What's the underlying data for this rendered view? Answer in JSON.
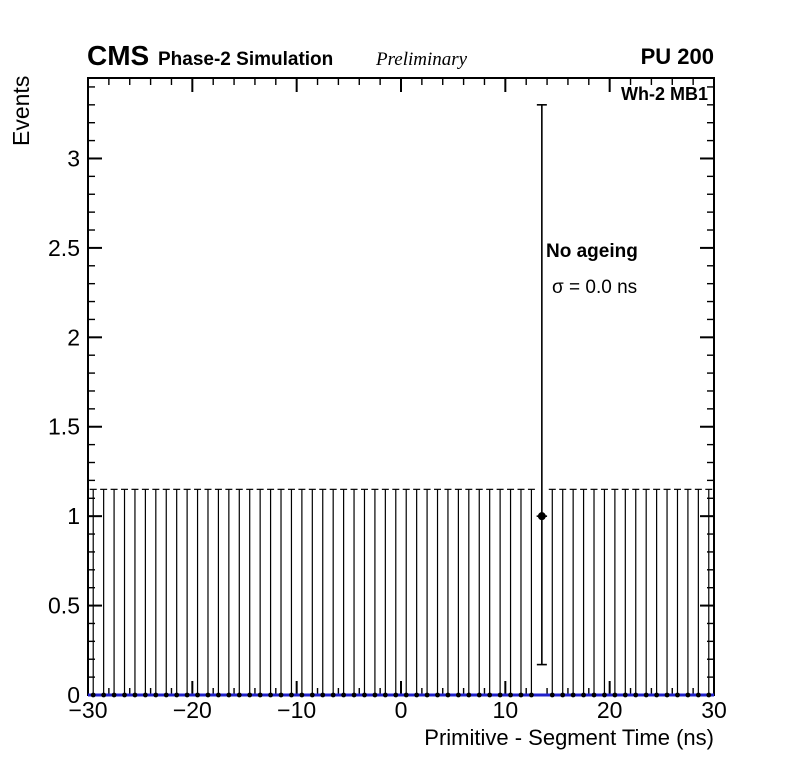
{
  "header": {
    "experiment": "CMS",
    "label": "Phase-2 Simulation",
    "sublabel": "Preliminary",
    "right_label": "PU 200"
  },
  "plot": {
    "region_label": "Wh-2 MB1",
    "annotation": "No ageing",
    "sigma_label": "σ = 0.0 ns"
  },
  "colors": {
    "fit_line": "#2222cc",
    "marker": "#000000",
    "frame": "#000000"
  },
  "chart_data": {
    "type": "scatter",
    "title": "",
    "xlabel": "Primitive - Segment Time (ns)",
    "ylabel": "Events",
    "xlim": [
      -30,
      30
    ],
    "ylim": [
      0,
      3.45
    ],
    "grid": false,
    "x_major_ticks": [
      -30,
      -20,
      -10,
      0,
      10,
      20,
      30
    ],
    "x_tick_labels": [
      "−30",
      "−20",
      "−10",
      "0",
      "10",
      "20",
      "30"
    ],
    "x_minor_step": 2,
    "y_major_ticks": [
      0,
      0.5,
      1,
      1.5,
      2,
      2.5,
      3
    ],
    "y_tick_labels": [
      "0",
      "0.5",
      "1",
      "1.5",
      "2",
      "2.5",
      "3"
    ],
    "y_minor_step": 0.1,
    "bin_width": 1,
    "bin_centers_start": -29.5,
    "bin_count": 60,
    "values": [
      0,
      0,
      0,
      0,
      0,
      0,
      0,
      0,
      0,
      0,
      0,
      0,
      0,
      0,
      0,
      0,
      0,
      0,
      0,
      0,
      0,
      0,
      0,
      0,
      0,
      0,
      0,
      0,
      0,
      0,
      0,
      0,
      0,
      0,
      0,
      0,
      0,
      0,
      0,
      0,
      0,
      0,
      0,
      1,
      0,
      0,
      0,
      0,
      0,
      0,
      0,
      0,
      0,
      0,
      0,
      0,
      0,
      0,
      0,
      0
    ],
    "zero_bin_upper_error": 1.15,
    "nonzero_point": {
      "x": 13.5,
      "y": 1,
      "err_low": 0.83,
      "err_high": 2.3
    },
    "fit_line": {
      "y": 0,
      "color": "#2222cc"
    }
  }
}
